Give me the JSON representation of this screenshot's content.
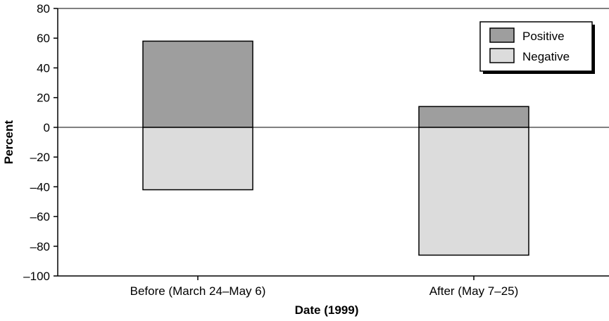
{
  "chart_data": {
    "type": "bar",
    "stacked": true,
    "categories": [
      "Before (March 24–May 6)",
      "After (May 7–25)"
    ],
    "series": [
      {
        "name": "Positive",
        "values": [
          58,
          14
        ],
        "color": "#9e9e9e"
      },
      {
        "name": "Negative",
        "values": [
          -42,
          -86
        ],
        "color": "#dcdcdc"
      }
    ],
    "xlabel": "Date (1999)",
    "ylabel": "Percent",
    "ylim": [
      -100,
      80
    ],
    "yticks": [
      80,
      60,
      40,
      20,
      0,
      -20,
      -40,
      -60,
      -80,
      -100
    ],
    "ytick_labels": [
      "80",
      "60",
      "40",
      "20",
      "0",
      "–20",
      "–40",
      "–60",
      "–80",
      "–100"
    ],
    "legend": "top-right",
    "grid": false
  }
}
